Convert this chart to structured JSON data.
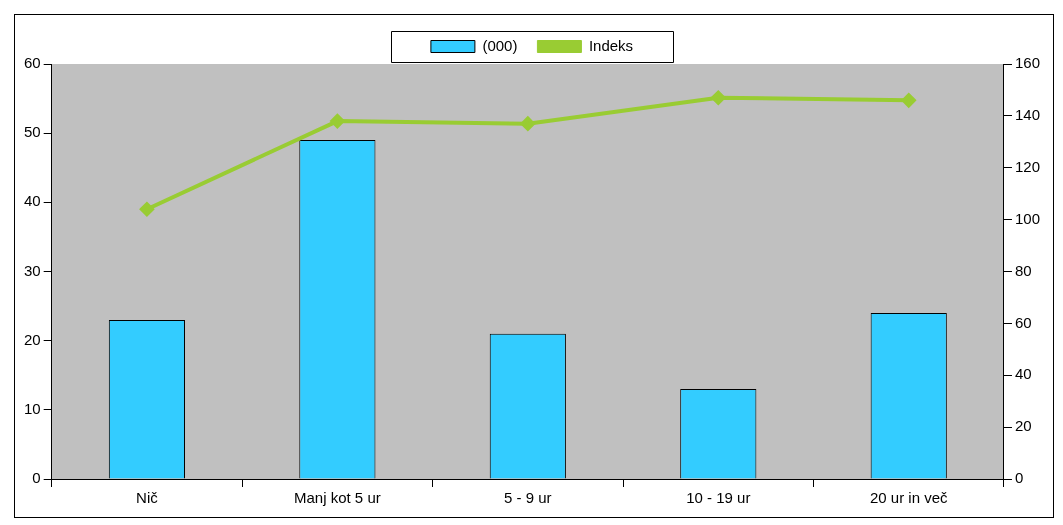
{
  "chart_data": {
    "type": "bar",
    "categories": [
      "Nič",
      "Manj kot 5 ur",
      "5 - 9 ur",
      "10 - 19 ur",
      "20 ur in več"
    ],
    "series": [
      {
        "name": "(000)",
        "color": "#33ccff",
        "values": [
          23,
          49,
          21,
          13,
          24
        ]
      },
      {
        "name": "Indeks",
        "type": "line",
        "axis": "y2",
        "color": "#99cc33",
        "values": [
          104,
          138,
          137,
          147,
          146
        ]
      }
    ],
    "ylim": [
      0,
      60
    ],
    "yticks": [
      0,
      10,
      20,
      30,
      40,
      50,
      60
    ],
    "y2lim": [
      0,
      160
    ],
    "y2ticks": [
      0,
      20,
      40,
      60,
      80,
      100,
      120,
      140,
      160
    ],
    "legend": "top",
    "marker": "diamond"
  }
}
